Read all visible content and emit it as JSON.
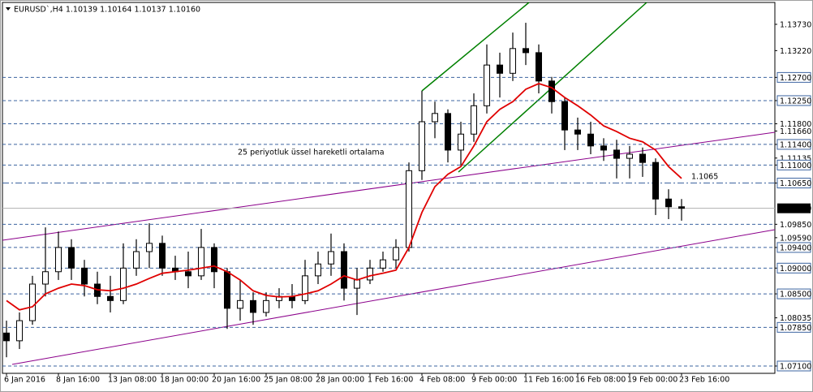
{
  "chart_data": {
    "type": "candlestick",
    "title": "EURUSD`,H4 1.10139 1.10164 1.10137 1.10160",
    "categories": [
      "6 Jan 2016",
      null,
      null,
      null,
      "8 Jan 16:00",
      null,
      null,
      null,
      "13 Jan 08:00",
      null,
      null,
      null,
      "18 Jan 00:00",
      null,
      null,
      null,
      "20 Jan 16:00",
      null,
      null,
      null,
      "25 Jan 08:00",
      null,
      null,
      null,
      "28 Jan 00:00",
      null,
      null,
      null,
      "1 Feb 16:00",
      null,
      null,
      null,
      "4 Feb 08:00",
      null,
      null,
      null,
      "9 Feb 00:00",
      null,
      null,
      null,
      "11 Feb 16:00",
      null,
      null,
      null,
      "16 Feb 08:00",
      null,
      null,
      null,
      "19 Feb 00:00",
      null,
      null,
      null,
      "23 Feb 16:00"
    ],
    "open": [
      1.0774,
      1.0759,
      1.0798,
      1.0869,
      1.0893,
      1.094,
      1.09,
      1.0869,
      1.0845,
      1.0837,
      1.09,
      1.0932,
      1.0948,
      1.09,
      1.0893,
      1.0885,
      1.094,
      1.0893,
      1.0822,
      1.0837,
      1.0814,
      1.0837,
      1.0845,
      1.0837,
      1.0885,
      1.0908,
      1.0932,
      1.0861,
      1.0877,
      1.09,
      1.0916,
      1.094,
      1.1089,
      1.1184,
      1.12,
      1.1129,
      1.116,
      1.1215,
      1.1294,
      1.1278,
      1.1326,
      1.1318,
      1.1263,
      1.1223,
      1.1168,
      1.116,
      1.1137,
      1.1129,
      1.1113,
      1.1121,
      1.1105,
      1.1034,
      1.1019
    ],
    "high": [
      1.0798,
      1.0814,
      1.0885,
      1.0979,
      1.0971,
      1.0956,
      1.0916,
      1.0893,
      1.0885,
      1.0948,
      1.0956,
      1.0987,
      1.0963,
      1.0924,
      1.0932,
      1.0976,
      1.0948,
      1.09,
      1.0877,
      1.0853,
      1.0853,
      1.0861,
      1.0869,
      1.0916,
      1.0932,
      1.0967,
      1.0948,
      1.09,
      1.0916,
      1.0932,
      1.0956,
      1.1105,
      1.1244,
      1.1223,
      1.1208,
      1.1184,
      1.1239,
      1.1334,
      1.1318,
      1.1357,
      1.1376,
      1.1334,
      1.1271,
      1.1231,
      1.1192,
      1.1184,
      1.1152,
      1.1149,
      1.1137,
      1.1134,
      1.1113,
      1.1053,
      1.1034
    ],
    "low": [
      1.0727,
      1.0743,
      1.079,
      1.0845,
      1.0877,
      1.0877,
      1.0845,
      1.083,
      1.0814,
      1.083,
      1.0885,
      1.09,
      1.0885,
      1.0877,
      1.0861,
      1.0877,
      1.0861,
      1.0782,
      1.0798,
      1.079,
      1.0806,
      1.0822,
      1.0822,
      1.083,
      1.0869,
      1.0885,
      1.0837,
      1.0809,
      1.0869,
      1.0893,
      1.09,
      1.0932,
      1.1071,
      1.1152,
      1.1105,
      1.1097,
      1.1145,
      1.12,
      1.1231,
      1.1263,
      1.1294,
      1.1239,
      1.12,
      1.1129,
      1.1129,
      1.1121,
      1.1108,
      1.1074,
      1.1074,
      1.1077,
      1.1003,
      1.0995,
      1.0992
    ],
    "close": [
      1.0759,
      1.0798,
      1.0869,
      1.0893,
      1.094,
      1.09,
      1.0869,
      1.0845,
      1.0837,
      1.09,
      1.0932,
      1.0948,
      1.09,
      1.0893,
      1.0885,
      1.094,
      1.0893,
      1.0822,
      1.0837,
      1.0814,
      1.0837,
      1.0845,
      1.0837,
      1.0885,
      1.0908,
      1.0932,
      1.0861,
      1.0877,
      1.09,
      1.0916,
      1.094,
      1.1089,
      1.1184,
      1.12,
      1.1129,
      1.116,
      1.1215,
      1.1294,
      1.1278,
      1.1326,
      1.1318,
      1.1263,
      1.1223,
      1.1168,
      1.116,
      1.1137,
      1.1129,
      1.1113,
      1.1121,
      1.1105,
      1.1034,
      1.1019,
      1.1016
    ],
    "ema": {
      "color": "#e00000",
      "values": [
        1.0837,
        1.0819,
        1.0825,
        1.085,
        1.0861,
        1.0869,
        1.0866,
        1.0858,
        1.0856,
        1.0861,
        1.0869,
        1.088,
        1.089,
        1.0893,
        1.0896,
        1.09,
        1.0904,
        1.0893,
        1.0877,
        1.0856,
        1.0847,
        1.0844,
        1.0845,
        1.085,
        1.0856,
        1.0869,
        1.0885,
        1.0877,
        1.0885,
        1.089,
        1.0896,
        1.094,
        1.1008,
        1.1058,
        1.1082,
        1.1097,
        1.1137,
        1.1184,
        1.1208,
        1.1223,
        1.1247,
        1.1258,
        1.125,
        1.1231,
        1.1215,
        1.1197,
        1.1176,
        1.1165,
        1.1152,
        1.1145,
        1.1129,
        1.1097,
        1.1074
      ]
    },
    "ylim": [
      1.06958,
      1.14202
    ],
    "yticks": [
      {
        "value": 1.1373,
        "label": "1.13730"
      },
      {
        "value": 1.1322,
        "label": "1.13220"
      },
      {
        "value": 1.127,
        "label": "1.12700",
        "boxed": true
      },
      {
        "value": 1.1225,
        "label": "1.12250",
        "boxed": true
      },
      {
        "value": 1.118,
        "label": "1.11800"
      },
      {
        "value": 1.1166,
        "label": "1.11660"
      },
      {
        "value": 1.114,
        "label": "1.11400",
        "boxed": true
      },
      {
        "value": 1.11135,
        "label": "1.11135"
      },
      {
        "value": 1.11,
        "label": "1.11000",
        "boxed": true
      },
      {
        "value": 1.1065,
        "label": "1.10650",
        "boxed": true
      },
      {
        "value": 1.0985,
        "label": "1.09850"
      },
      {
        "value": 1.0959,
        "label": "1.09590"
      },
      {
        "value": 1.094,
        "label": "1.09400",
        "boxed": true
      },
      {
        "value": 1.09,
        "label": "1.09000",
        "boxed": true
      },
      {
        "value": 1.085,
        "label": "1.08500",
        "boxed": true
      },
      {
        "value": 1.08035,
        "label": "1.08035"
      },
      {
        "value": 1.0785,
        "label": "1.07850",
        "boxed": true
      },
      {
        "value": 1.071,
        "label": "1.07100",
        "boxed": true
      }
    ],
    "levels": [
      1.127,
      1.1225,
      1.118,
      1.114,
      1.11,
      1.0985,
      1.094,
      1.09,
      1.085,
      1.0785,
      1.071
    ],
    "dashdot_levels": [
      1.1065
    ],
    "last_price": {
      "value": 1.1016,
      "label": "1.10160"
    },
    "annotations": [
      "25 periyotluk üssel hareketli ortalama",
      "1.1065"
    ]
  }
}
